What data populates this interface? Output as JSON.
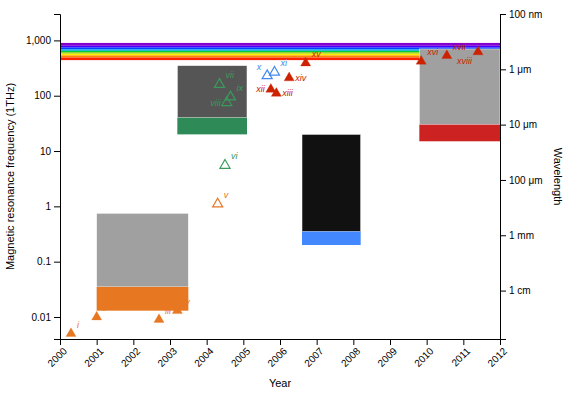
{
  "chart_data": {
    "type": "scatter",
    "xlabel": "Year",
    "ylabel": "Magnetic resonance frequency (1THz)",
    "y2label": "Wavelength",
    "log": "y",
    "grid": false,
    "xlim": [
      2000,
      2012
    ],
    "ylim": [
      0.004,
      3000
    ],
    "y2lim": [
      0.004,
      3000
    ],
    "xticks": [
      2000,
      2001,
      2002,
      2003,
      2004,
      2005,
      2006,
      2007,
      2008,
      2009,
      2010,
      2011,
      2012
    ],
    "yticks": [
      0.01,
      0.1,
      1,
      10,
      100,
      {
        "value": 1000,
        "label": "1,000"
      }
    ],
    "y2ticks": [
      {
        "value": 3000,
        "label": "100 nm"
      },
      {
        "value": 300,
        "label": "1 μm"
      },
      {
        "value": 30,
        "label": "10 μm"
      },
      {
        "value": 3,
        "label": "100 μm"
      },
      {
        "value": 0.3,
        "label": "1 mm"
      },
      {
        "value": 0.03,
        "label": "1 cm"
      }
    ],
    "series": [
      {
        "color": "#E87722",
        "marker": "triangle",
        "x": [
          2000.3,
          2001.0,
          2002.7,
          2003.2
        ],
        "values": [
          0.005,
          0.01,
          0.009,
          0.013
        ],
        "labels": [
          "i",
          "ii",
          "iii",
          "iv"
        ]
      },
      {
        "color": "#E87722",
        "marker": "triangle-open",
        "x": [
          2004.3
        ],
        "values": [
          1.1
        ],
        "labels": [
          "v"
        ]
      },
      {
        "color": "#3A9A5C",
        "marker": "triangle-open",
        "x": [
          2004.35,
          2004.55,
          2004.65,
          2004.5
        ],
        "values": [
          160,
          75,
          95,
          5.5
        ],
        "labels": [
          "vii",
          "viii",
          "ix",
          "vi"
        ]
      },
      {
        "color": "#4488EE",
        "marker": "triangle-open",
        "x": [
          2005.65,
          2005.85
        ],
        "values": [
          230,
          265
        ],
        "labels": [
          "x",
          "xi"
        ]
      },
      {
        "color": "#CC2200",
        "marker": "triangle",
        "x": [
          2005.75,
          2005.9,
          2006.25,
          2006.7,
          2009.85,
          2010.55,
          2011.4
        ],
        "values": [
          130,
          110,
          210,
          390,
          420,
          530,
          620
        ],
        "labels": [
          "xii",
          "xiii",
          "xiv",
          "xv",
          "xvi",
          "xvii",
          "xviii"
        ]
      }
    ],
    "bands": [
      {
        "ymin": 800,
        "ymax": 900,
        "color": "#8800CC"
      },
      {
        "ymin": 740,
        "ymax": 800,
        "color": "#4400FF"
      },
      {
        "ymin": 690,
        "ymax": 740,
        "color": "#0044FF"
      },
      {
        "ymin": 650,
        "ymax": 690,
        "color": "#0099FF"
      },
      {
        "ymin": 610,
        "ymax": 650,
        "color": "#00CC44"
      },
      {
        "ymin": 575,
        "ymax": 610,
        "color": "#88CC00"
      },
      {
        "ymin": 535,
        "ymax": 575,
        "color": "#FFEE00"
      },
      {
        "ymin": 490,
        "ymax": 535,
        "color": "#FF8800"
      },
      {
        "ymin": 440,
        "ymax": 490,
        "color": "#FF2200"
      }
    ],
    "boxes": [
      {
        "x0": 2001.0,
        "x1": 2003.5,
        "y0_img": 0.035,
        "y1_img": 0.75,
        "y0_bar": 0.013,
        "y1_bar": 0.035,
        "img_color": "#A0A0A0",
        "bar_color": "#E87722"
      },
      {
        "x0": 2003.2,
        "x1": 2005.1,
        "y0_img": 40,
        "y1_img": 350,
        "y0_bar": 20,
        "y1_bar": 40,
        "img_color": "#555555",
        "bar_color": "#2E8B57"
      },
      {
        "x0": 2006.6,
        "x1": 2008.2,
        "y0_img": 0.35,
        "y1_img": 20,
        "y0_bar": 0.2,
        "y1_bar": 0.35,
        "img_color": "#111111",
        "bar_color": "#4488FF"
      },
      {
        "x0": 2009.8,
        "x1": 2012.0,
        "y0_img": 30,
        "y1_img": 700,
        "y0_bar": 15,
        "y1_bar": 30,
        "img_color": "#A0A0A0",
        "bar_color": "#CC2222"
      }
    ]
  }
}
